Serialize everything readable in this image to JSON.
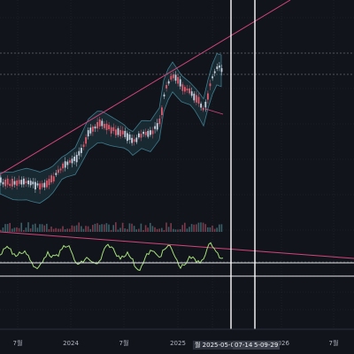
{
  "x_axis": {
    "labels": [
      "7월",
      "2024",
      "7월",
      "2025",
      "2026",
      "7월"
    ]
  },
  "markers": {
    "date_1": "월 2025-05-05",
    "date_2": "07-14",
    "date_3": "5-09-29"
  },
  "colors": {
    "background": "#12141c",
    "grid": "#232733",
    "candle_up": "#c8d2e0",
    "candle_down": "#e05a6e",
    "band_fill": "#1d3a44",
    "band_line": "#3f7d8e",
    "trendline": "#d2467a",
    "oscillator": "#a6e07a",
    "marker_line": "#ffffff",
    "dotted_line": "#8a8f9c"
  }
}
